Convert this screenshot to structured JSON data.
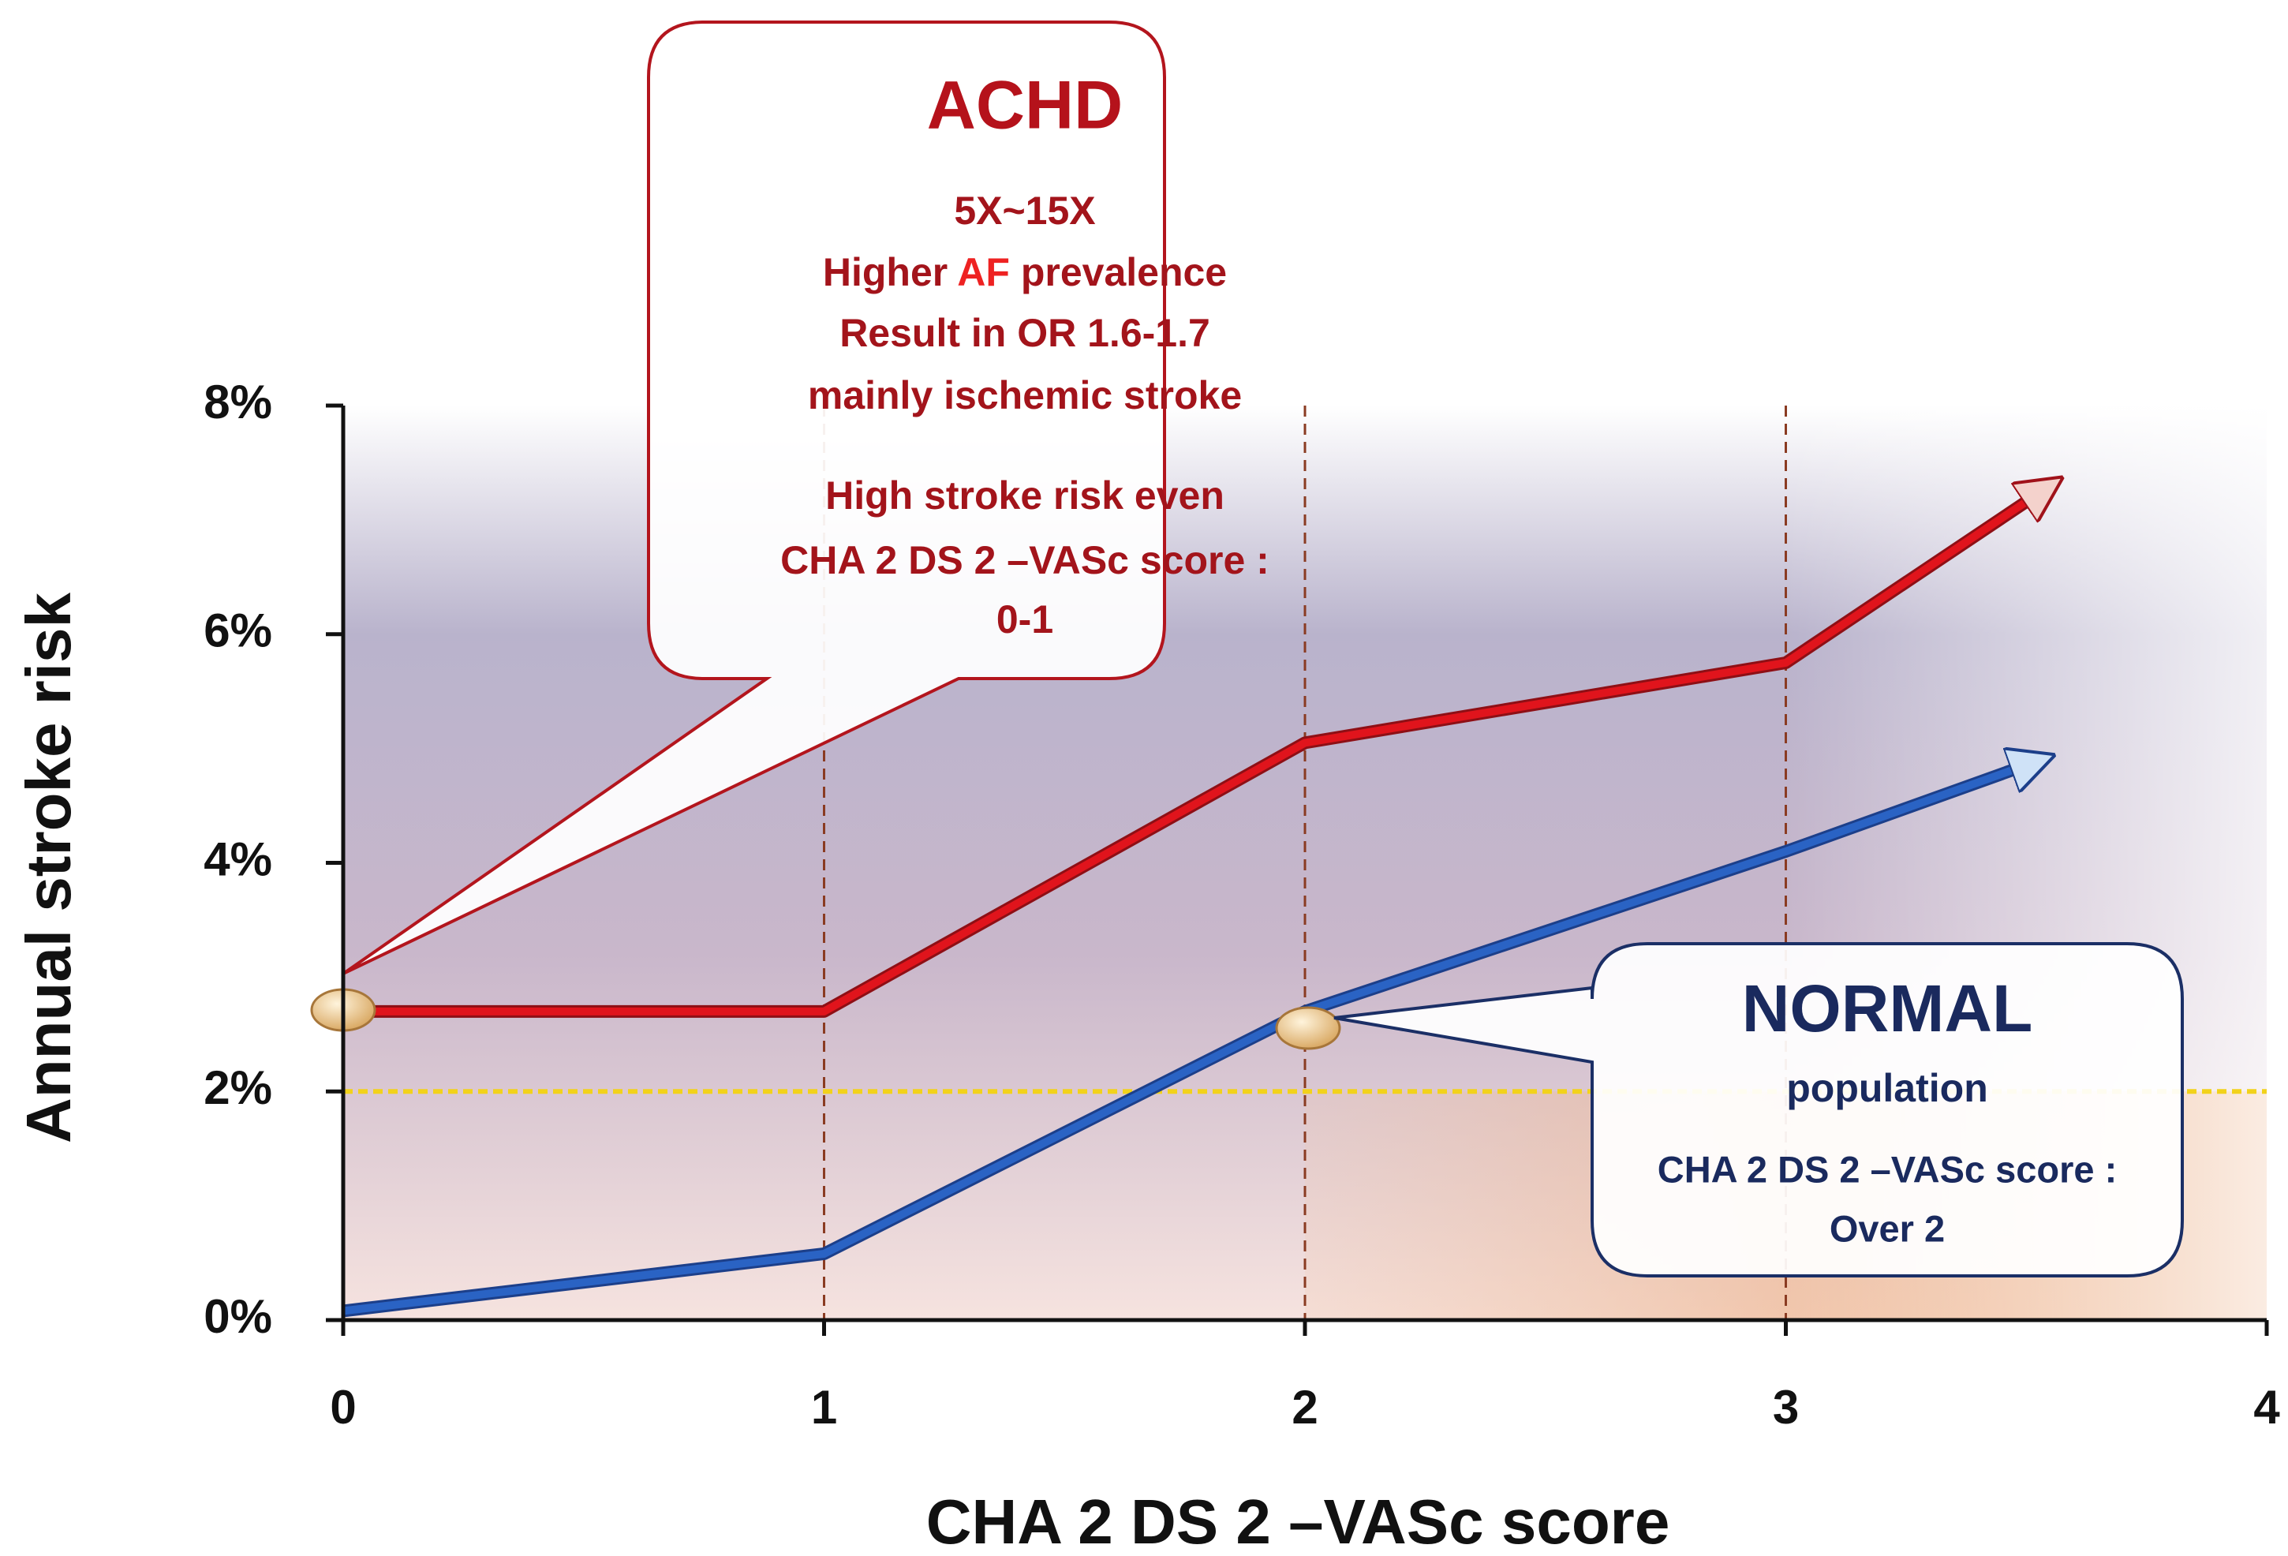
{
  "chart_data": {
    "type": "line",
    "x_label": "CHA 2 DS 2 –VASc score",
    "y_label": "Annual stroke risk",
    "xlim": [
      0,
      4
    ],
    "xticks": [
      0,
      1,
      2,
      3,
      4
    ],
    "ylim": [
      0,
      8
    ],
    "yticks": [
      {
        "value": 0,
        "label": "0%"
      },
      {
        "value": 2,
        "label": "2%"
      },
      {
        "value": 4,
        "label": "4%"
      },
      {
        "value": 6,
        "label": "6%"
      },
      {
        "value": 8,
        "label": "8%"
      }
    ],
    "guides_x": [
      1,
      2,
      3
    ],
    "threshold": 2,
    "threshold_color": "#f2d21b",
    "series": [
      {
        "color": "#e0141c",
        "x": [
          0,
          1,
          2,
          3,
          3.55
        ],
        "values": [
          2.7,
          2.7,
          5.05,
          5.75,
          7.3
        ]
      },
      {
        "color": "#2a63c4",
        "x": [
          0,
          1,
          2,
          3,
          3.53
        ],
        "values": [
          0.08,
          0.58,
          2.7,
          4.1,
          4.9
        ]
      }
    ],
    "callouts": {
      "achd": {
        "title": "ACHD",
        "multiplier": "5X~15X",
        "prevalence": [
          "Higher ",
          "AF",
          " prevalence"
        ],
        "lines": [
          "Result in OR 1.6-1.7",
          "mainly ischemic stroke",
          "High stroke risk even",
          "CHA 2 DS 2 –VASc score :",
          "0-1"
        ]
      },
      "normal": {
        "title": "NORMAL",
        "subtitle": "population",
        "lines": [
          "CHA 2 DS 2 –VASc score :",
          "Over 2"
        ]
      }
    }
  }
}
